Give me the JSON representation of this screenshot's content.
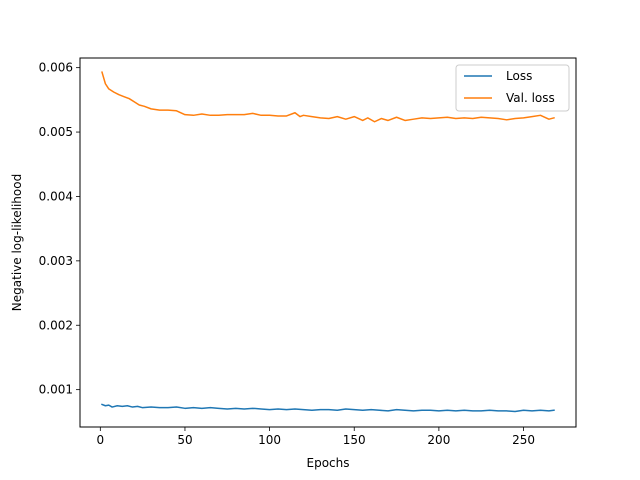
{
  "chart_data": {
    "type": "line",
    "title": "",
    "xlabel": "Epochs",
    "ylabel": "Negative log-likelihood",
    "xlim": [
      -12,
      281
    ],
    "ylim": [
      0.00042,
      0.00615
    ],
    "xticks": [
      0,
      50,
      100,
      150,
      200,
      250
    ],
    "xtick_labels": [
      "0",
      "50",
      "100",
      "150",
      "200",
      "250"
    ],
    "yticks": [
      0.001,
      0.002,
      0.003,
      0.004,
      0.005,
      0.006
    ],
    "ytick_labels": [
      "0.001",
      "0.002",
      "0.003",
      "0.004",
      "0.005",
      "0.006"
    ],
    "grid": false,
    "legend_position": "top-right",
    "series": [
      {
        "name": "Loss",
        "color": "#1f77b4",
        "x": [
          1,
          3,
          5,
          7,
          10,
          13,
          16,
          19,
          22,
          25,
          30,
          35,
          40,
          45,
          50,
          55,
          60,
          65,
          70,
          75,
          80,
          85,
          90,
          95,
          100,
          105,
          110,
          115,
          120,
          125,
          130,
          135,
          140,
          145,
          150,
          155,
          160,
          165,
          170,
          175,
          180,
          185,
          190,
          195,
          200,
          205,
          210,
          215,
          220,
          225,
          230,
          235,
          240,
          245,
          250,
          255,
          260,
          265,
          268
        ],
        "y": [
          0.00077,
          0.00075,
          0.00076,
          0.00073,
          0.00075,
          0.00074,
          0.00075,
          0.00073,
          0.00074,
          0.00072,
          0.00073,
          0.00072,
          0.00072,
          0.00073,
          0.00071,
          0.00072,
          0.00071,
          0.00072,
          0.00071,
          0.0007,
          0.00071,
          0.0007,
          0.00071,
          0.0007,
          0.00069,
          0.0007,
          0.00069,
          0.0007,
          0.00069,
          0.00068,
          0.00069,
          0.00069,
          0.00068,
          0.0007,
          0.00069,
          0.00068,
          0.00069,
          0.00068,
          0.00067,
          0.00069,
          0.00068,
          0.00067,
          0.00068,
          0.00068,
          0.00067,
          0.00068,
          0.00067,
          0.00068,
          0.00067,
          0.00067,
          0.00068,
          0.00067,
          0.00067,
          0.00066,
          0.00068,
          0.00067,
          0.00068,
          0.00067,
          0.00068
        ]
      },
      {
        "name": "Val. loss",
        "color": "#ff7f0e",
        "x": [
          1,
          3,
          5,
          8,
          11,
          14,
          17,
          20,
          23,
          26,
          30,
          35,
          40,
          45,
          50,
          55,
          60,
          65,
          70,
          75,
          80,
          85,
          90,
          95,
          100,
          105,
          110,
          115,
          118,
          120,
          125,
          130,
          135,
          140,
          145,
          150,
          155,
          158,
          162,
          166,
          170,
          175,
          180,
          185,
          190,
          195,
          200,
          205,
          210,
          215,
          220,
          225,
          230,
          235,
          240,
          245,
          250,
          255,
          260,
          265,
          268
        ],
        "y": [
          0.00593,
          0.00575,
          0.00567,
          0.00562,
          0.00558,
          0.00555,
          0.00552,
          0.00547,
          0.00542,
          0.0054,
          0.00536,
          0.00534,
          0.00534,
          0.00533,
          0.00527,
          0.00526,
          0.00528,
          0.00526,
          0.00526,
          0.00527,
          0.00527,
          0.00527,
          0.00529,
          0.00526,
          0.00526,
          0.00525,
          0.00525,
          0.0053,
          0.00524,
          0.00526,
          0.00524,
          0.00522,
          0.00521,
          0.00524,
          0.0052,
          0.00524,
          0.00518,
          0.00522,
          0.00516,
          0.00521,
          0.00518,
          0.00523,
          0.00518,
          0.0052,
          0.00522,
          0.00521,
          0.00522,
          0.00523,
          0.00521,
          0.00522,
          0.00521,
          0.00523,
          0.00522,
          0.00521,
          0.00519,
          0.00521,
          0.00522,
          0.00524,
          0.00526,
          0.0052,
          0.00522
        ]
      }
    ]
  }
}
